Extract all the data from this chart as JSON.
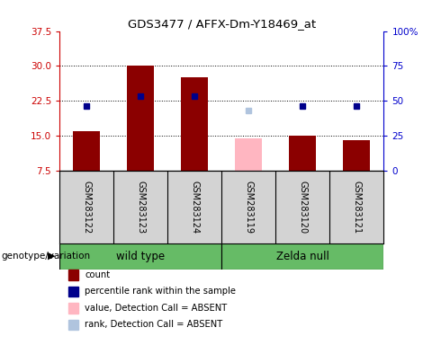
{
  "title": "GDS3477 / AFFX-Dm-Y18469_at",
  "samples": [
    "GSM283122",
    "GSM283123",
    "GSM283124",
    "GSM283119",
    "GSM283120",
    "GSM283121"
  ],
  "bar_bottom": 7.5,
  "count_values": [
    16.0,
    30.0,
    27.5,
    null,
    15.0,
    14.0
  ],
  "count_color": "#8B0000",
  "absent_value_values": [
    null,
    null,
    null,
    14.5,
    null,
    null
  ],
  "absent_value_color": "#FFB6C1",
  "percentile_rank_values": [
    21.5,
    23.5,
    23.5,
    null,
    21.5,
    21.5
  ],
  "percentile_rank_color": "#00008B",
  "absent_rank_values": [
    null,
    null,
    null,
    20.5,
    null,
    null
  ],
  "absent_rank_color": "#B0C4DE",
  "ylim_left": [
    7.5,
    37.5
  ],
  "yticks_left": [
    7.5,
    15.0,
    22.5,
    30.0,
    37.5
  ],
  "ylim_right": [
    0,
    100
  ],
  "yticks_right": [
    0,
    25,
    50,
    75,
    100
  ],
  "ylabel_left_color": "#CC0000",
  "ylabel_right_color": "#0000CC",
  "grid_lines": [
    15.0,
    22.5,
    30.0
  ],
  "bar_width": 0.5,
  "group_label_color": "#66BB66",
  "legend_items": [
    {
      "color": "#8B0000",
      "label": "count"
    },
    {
      "color": "#00008B",
      "label": "percentile rank within the sample"
    },
    {
      "color": "#FFB6C1",
      "label": "value, Detection Call = ABSENT"
    },
    {
      "color": "#B0C4DE",
      "label": "rank, Detection Call = ABSENT"
    }
  ],
  "wild_type_indices": [
    0,
    1,
    2
  ],
  "zelda_null_indices": [
    3,
    4,
    5
  ]
}
